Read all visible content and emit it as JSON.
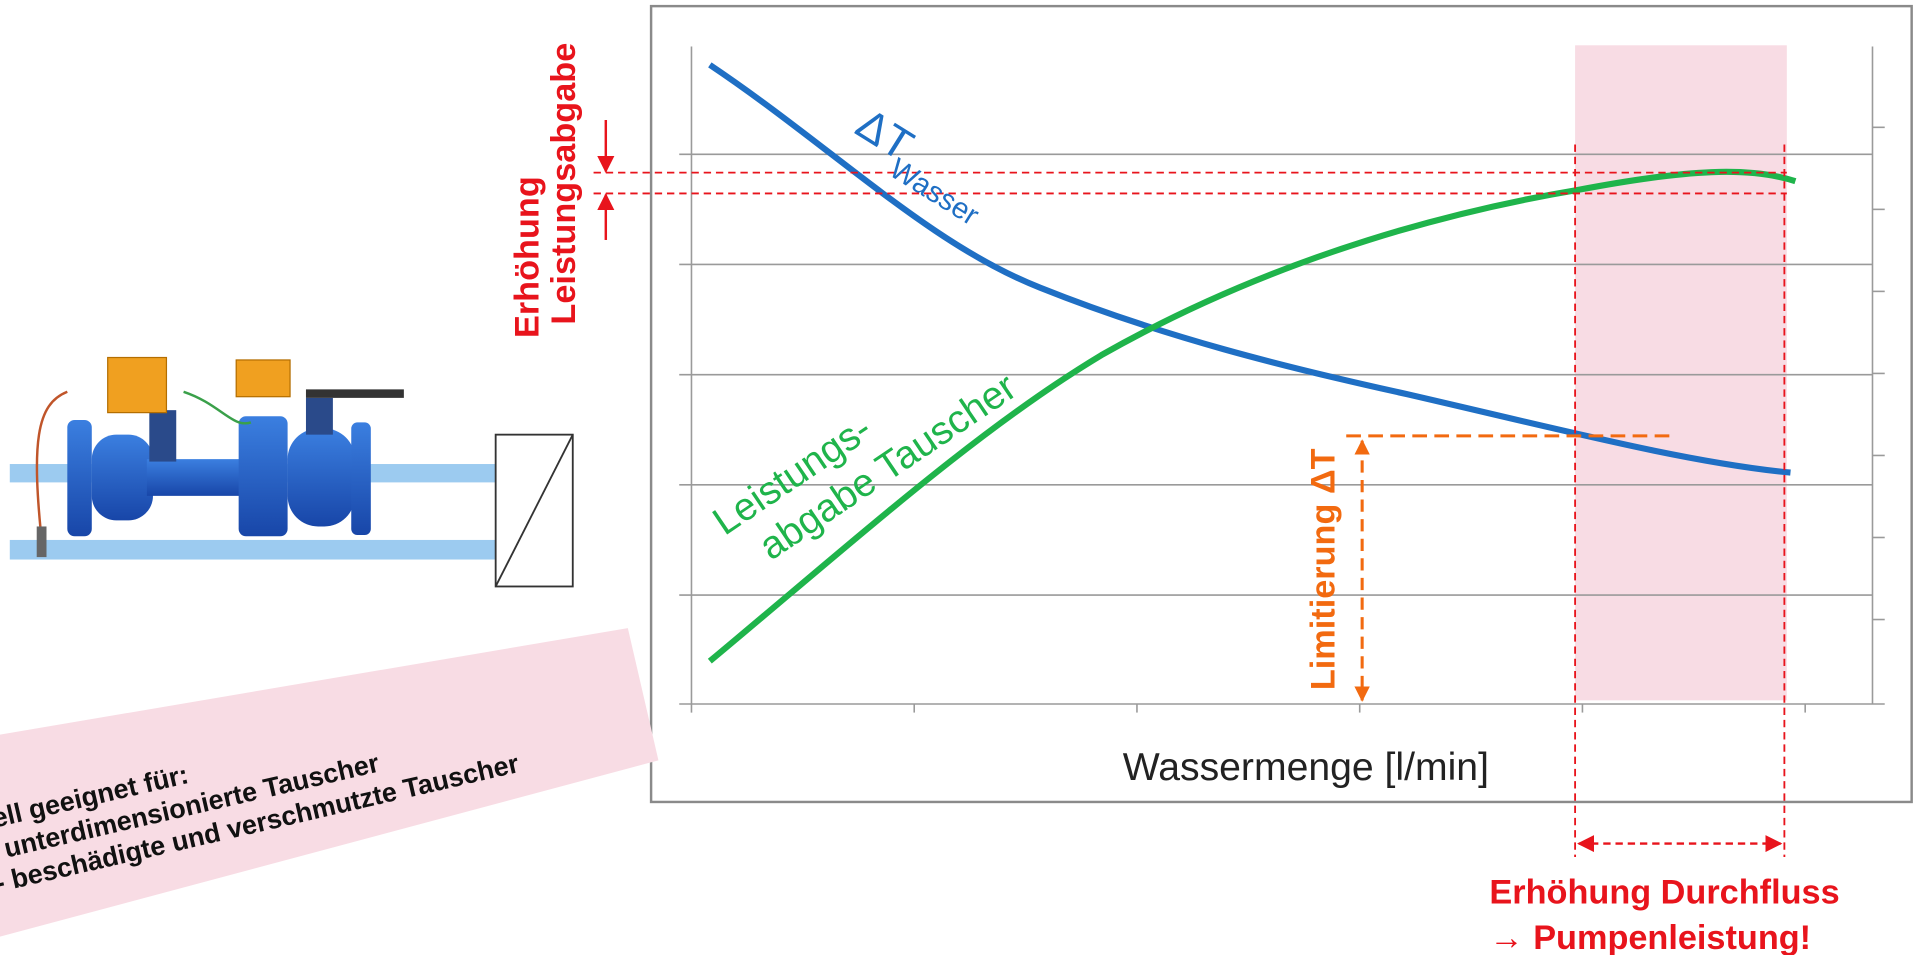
{
  "chart": {
    "delta_t": "ΔT",
    "delta_t_sub": "Wasser",
    "green_label": [
      "Leistungs-",
      "abgabe Tauscher"
    ],
    "increase_output": [
      "Erhöhung",
      "Leistungsabgabe"
    ],
    "limit_label": "Limitierung ΔT",
    "x_axis_label": "Wassermenge [l/min]",
    "increase_flow": [
      "Erhöhung Durchfluss",
      "→ Pumpenleistung!"
    ]
  },
  "banner": {
    "lines": [
      "Speziell geeignet für:",
      "- unterdimensionierte Tauscher",
      "- beschädigte und verschmutzte Tauscher"
    ]
  }
}
